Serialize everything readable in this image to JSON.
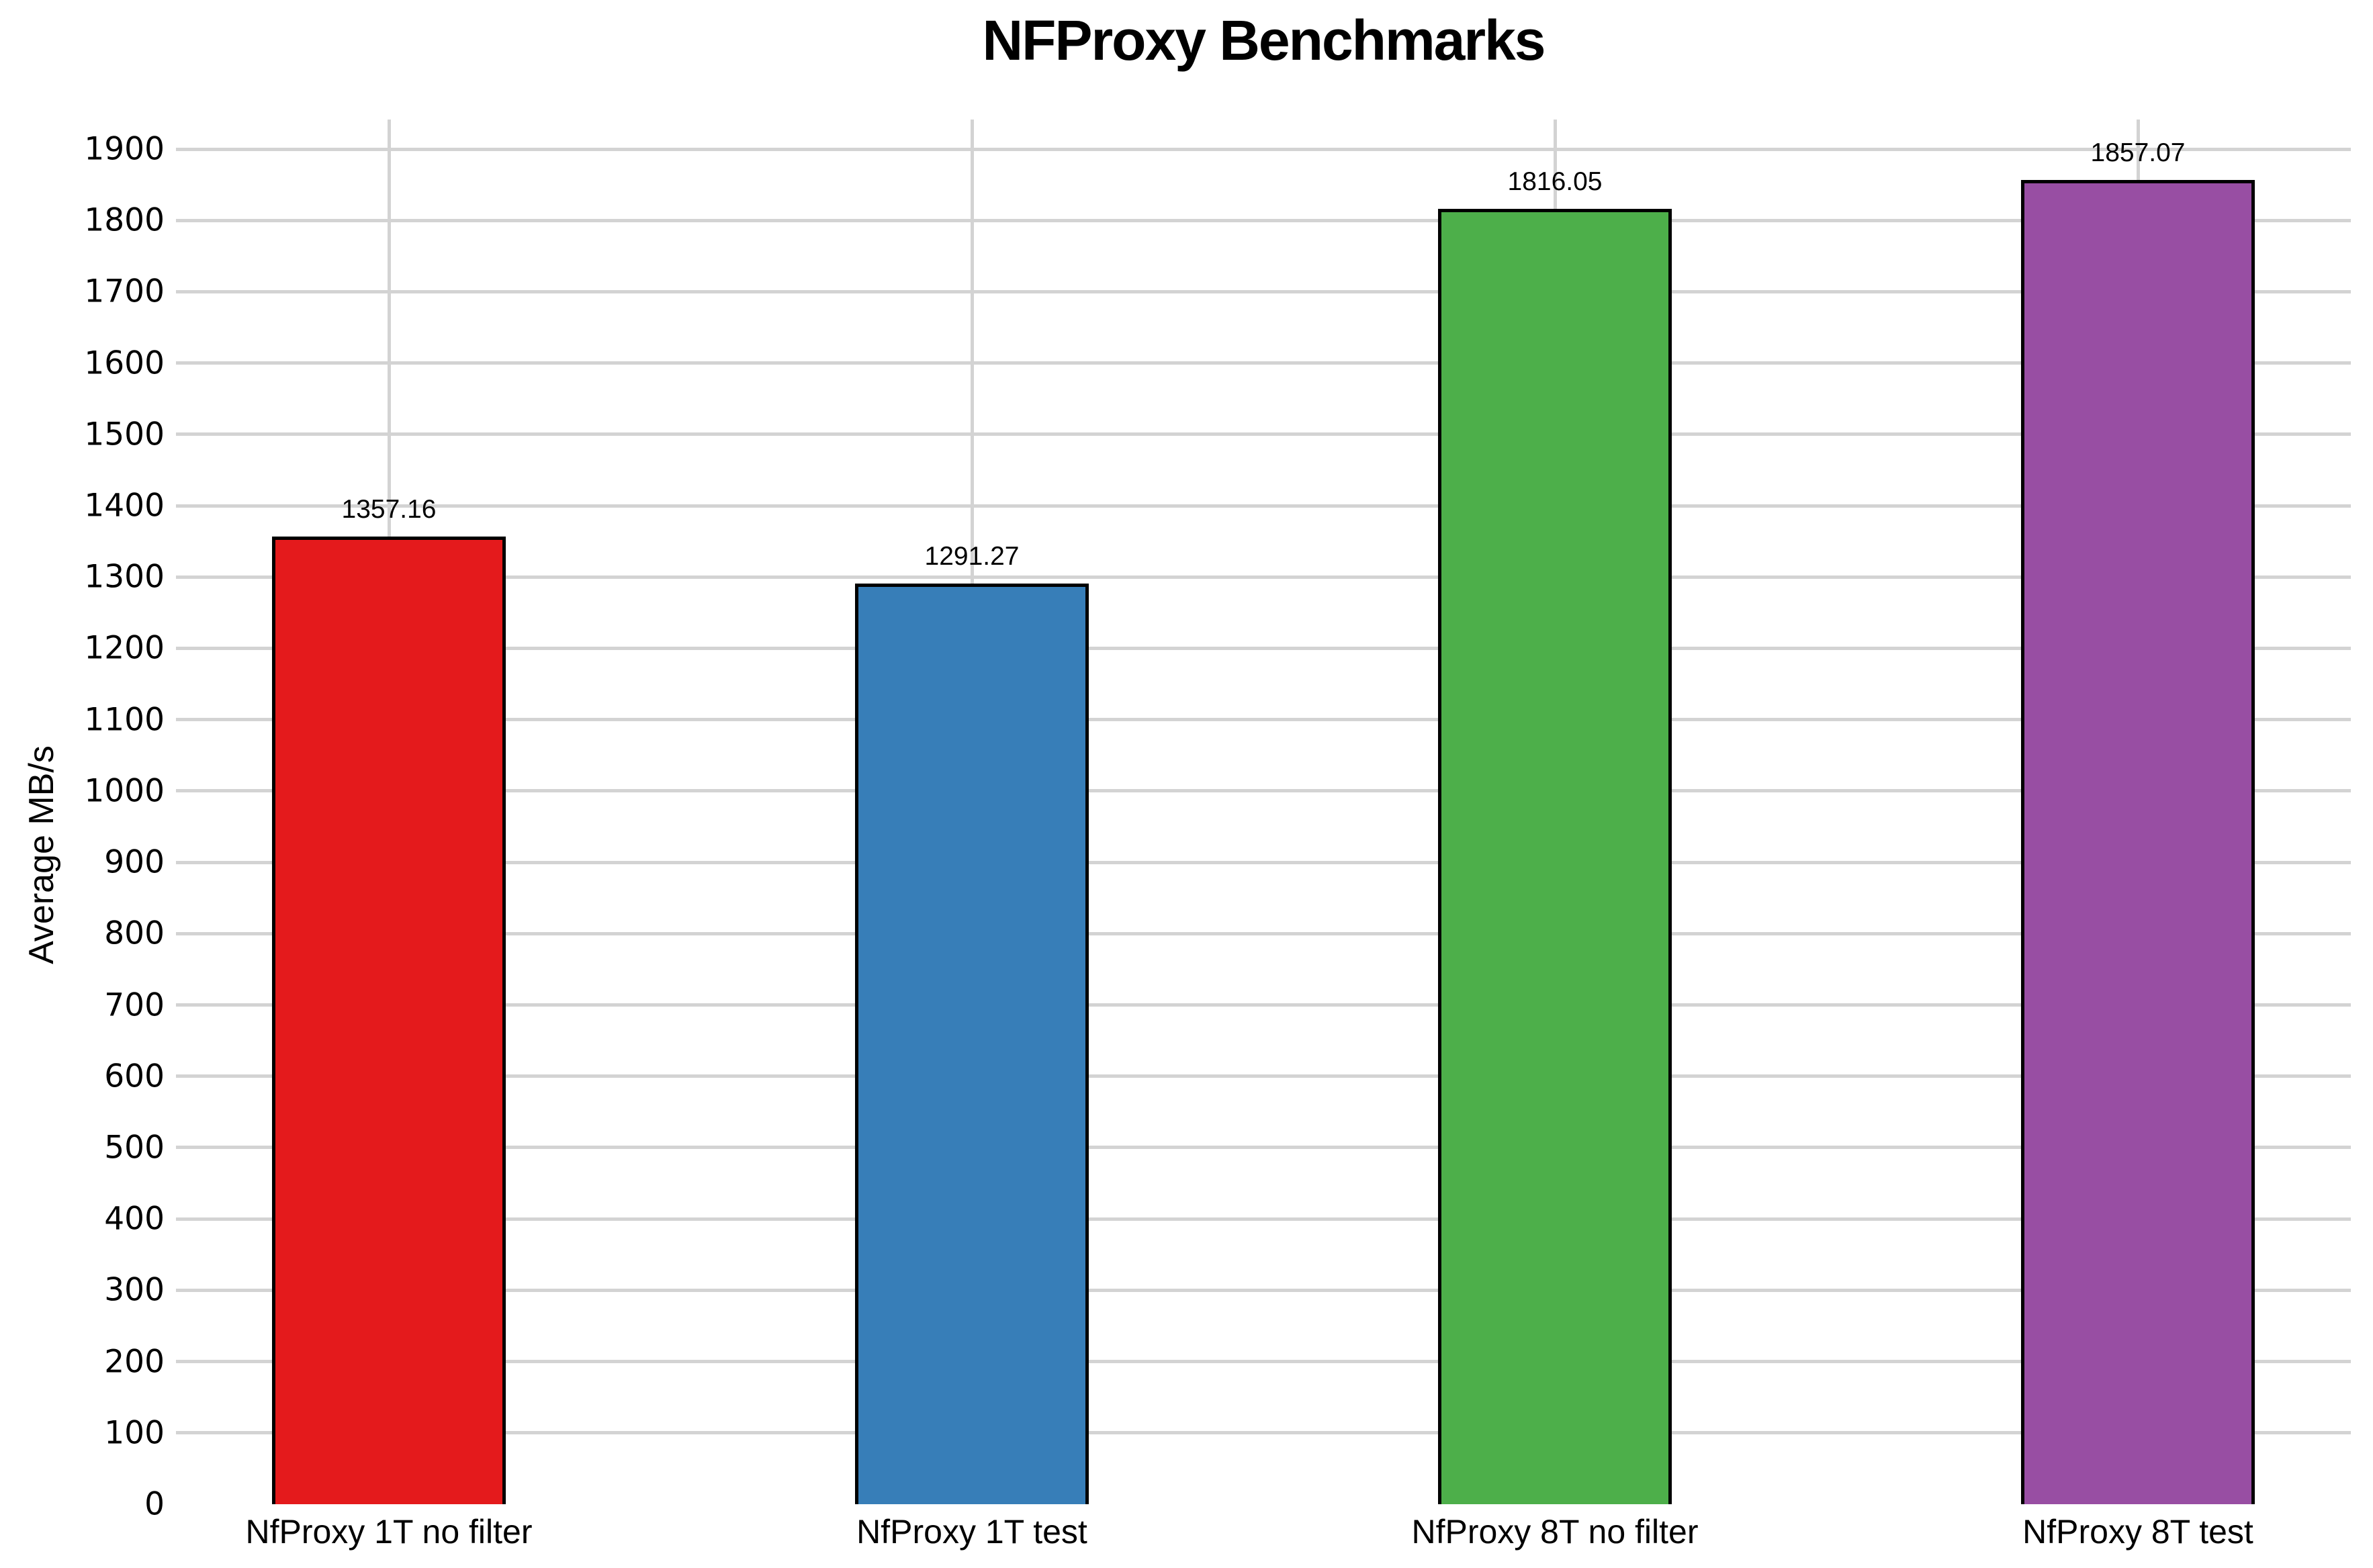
{
  "title": "NFProxy Benchmarks",
  "chart_data": {
    "type": "bar",
    "title": "NFProxy Benchmarks",
    "categories": [
      "NfProxy 1T no filter",
      "NfProxy 1T test",
      "NfProxy 8T no filter",
      "NfProxy 8T test"
    ],
    "values": [
      1357.16,
      1291.27,
      1816.05,
      1857.07
    ],
    "value_labels": [
      "1357.16",
      "1291.27",
      "1816.05",
      "1857.07"
    ],
    "xlabel": "",
    "ylabel": "Average MB/s",
    "ylim": [
      0,
      1900
    ],
    "ytick_step": 100,
    "ytick_labels": [
      "0",
      "100",
      "200",
      "300",
      "400",
      "500",
      "600",
      "700",
      "800",
      "900",
      "1000",
      "1100",
      "1200",
      "1300",
      "1400",
      "1500",
      "1600",
      "1700",
      "1800",
      "1900"
    ],
    "grid": true,
    "legend": "none",
    "bar_colors": [
      "#e41a1c",
      "#377eb8",
      "#4daf4a",
      "#984ea3"
    ],
    "bar_edge_color": "#000000",
    "grid_color": "#d3d3d3",
    "background_color": "#ffffff",
    "text_color": "#000000"
  }
}
